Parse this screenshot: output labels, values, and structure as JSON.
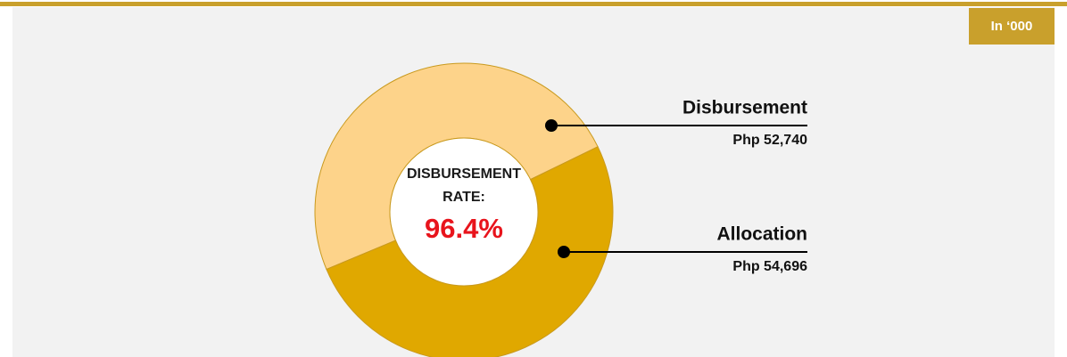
{
  "chart_data": {
    "type": "donut",
    "unit_note": "In ‘000",
    "categories": [
      "Disbursement",
      "Allocation"
    ],
    "values": [
      52740,
      54696
    ],
    "value_labels": [
      "Php 52,740",
      "Php 54,696"
    ],
    "colors": [
      "#fdd38a",
      "#e0a800"
    ],
    "center_label": [
      "DISBURSEMENT",
      "RATE:"
    ],
    "center_value": "96.4%"
  }
}
